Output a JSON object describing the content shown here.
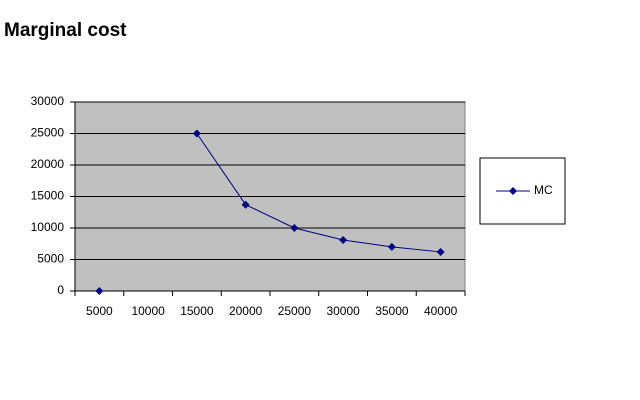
{
  "chart_data": {
    "type": "line",
    "title": "Marginal cost",
    "categories": [
      "5000",
      "10000",
      "15000",
      "20000",
      "25000",
      "30000",
      "35000",
      "40000"
    ],
    "series": [
      {
        "name": "MC",
        "color": "#000080",
        "values": [
          0,
          null,
          25000,
          13700,
          10000,
          8100,
          7000,
          6200
        ]
      }
    ],
    "ylim": [
      0,
      30000
    ],
    "yticks": [
      0,
      5000,
      10000,
      15000,
      20000,
      25000,
      30000
    ],
    "grid": true,
    "legend": "right",
    "plot_background": "#c0c0c0"
  }
}
